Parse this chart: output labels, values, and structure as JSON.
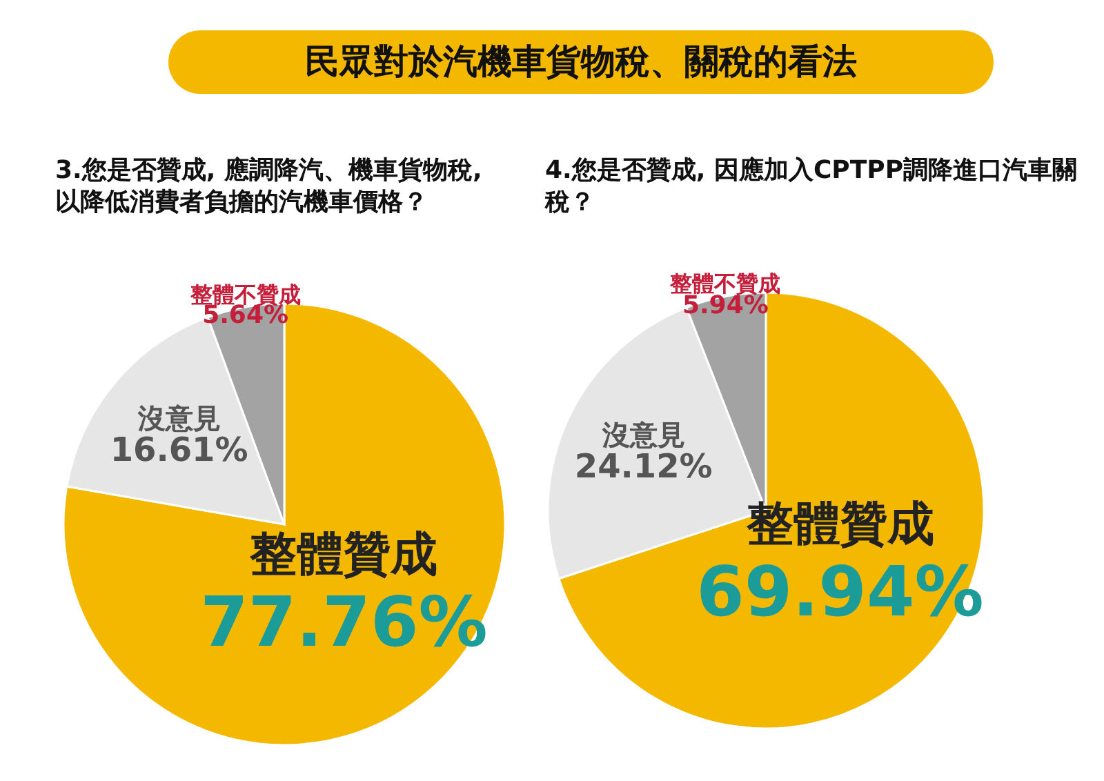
{
  "chart_data": [
    {
      "type": "pie",
      "title": "民眾對於汽機車貨物稅、關稅的看法",
      "subtitle": "3.您是否贊成, 應調降汽、機車貨物稅, 以降低消費者負擔的汽機車價格？",
      "categories": [
        "整體贊成",
        "沒意見",
        "整體不贊成"
      ],
      "values": [
        77.76,
        16.61,
        5.64
      ],
      "value_labels": [
        "77.76%",
        "16.61%",
        "5.64%"
      ],
      "colors": [
        "#f5b800",
        "#e6e6e6",
        "#a3a3a3"
      ]
    },
    {
      "type": "pie",
      "subtitle": "4.您是否贊成, 因應加入CPTPP調降進口汽車關稅？",
      "categories": [
        "整體贊成",
        "沒意見",
        "整體不贊成"
      ],
      "values": [
        69.94,
        24.12,
        5.94
      ],
      "value_labels": [
        "69.94%",
        "24.12%",
        "5.94%"
      ],
      "colors": [
        "#f5b800",
        "#e6e6e6",
        "#a3a3a3"
      ]
    }
  ]
}
